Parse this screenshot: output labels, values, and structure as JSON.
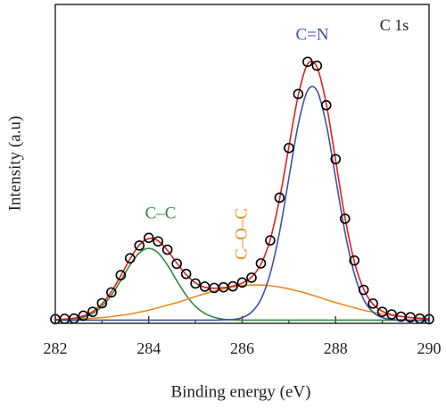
{
  "chart_data": {
    "type": "line",
    "x_label": "Binding energy (eV)",
    "y_label": "Intensity (a.u)",
    "label": "C 1s",
    "xlim": [
      282,
      290
    ],
    "xticks": [
      282,
      284,
      286,
      288,
      290
    ],
    "xminorticks": [
      283,
      285,
      287,
      289
    ],
    "ylim": [
      0,
      1
    ],
    "x": [
      282.0,
      282.2,
      282.4,
      282.6,
      282.8,
      283.0,
      283.2,
      283.4,
      283.6,
      283.8,
      284.0,
      284.2,
      284.4,
      284.6,
      284.8,
      285.0,
      285.2,
      285.4,
      285.6,
      285.8,
      286.0,
      286.2,
      286.4,
      286.6,
      286.8,
      287.0,
      287.2,
      287.4,
      287.6,
      287.8,
      288.0,
      288.2,
      288.4,
      288.6,
      288.8,
      289.0,
      289.2,
      289.4,
      289.6,
      289.8,
      290.0
    ],
    "series": [
      {
        "name": "C–C",
        "color": "#2e8b3e",
        "values": [
          0.01,
          0.011,
          0.013,
          0.019,
          0.031,
          0.053,
          0.088,
          0.134,
          0.183,
          0.221,
          0.235,
          0.221,
          0.183,
          0.134,
          0.088,
          0.053,
          0.031,
          0.019,
          0.013,
          0.011,
          0.01,
          0.01,
          0.01,
          0.01,
          0.01,
          0.01,
          0.01,
          0.01,
          0.01,
          0.01,
          0.01,
          0.01,
          0.01,
          0.01,
          0.01,
          0.01,
          0.01,
          0.01,
          0.01,
          0.01,
          0.01
        ]
      },
      {
        "name": "C–O–C",
        "color": "#f08a1e",
        "values": [
          0.011,
          0.012,
          0.013,
          0.014,
          0.016,
          0.018,
          0.021,
          0.025,
          0.029,
          0.035,
          0.041,
          0.049,
          0.057,
          0.065,
          0.074,
          0.084,
          0.093,
          0.101,
          0.108,
          0.114,
          0.118,
          0.12,
          0.12,
          0.118,
          0.114,
          0.108,
          0.101,
          0.093,
          0.084,
          0.074,
          0.065,
          0.057,
          0.049,
          0.041,
          0.035,
          0.029,
          0.025,
          0.021,
          0.018,
          0.016,
          0.014
        ]
      },
      {
        "name": "C=N",
        "color": "#3b52a8",
        "values": [
          0.01,
          0.01,
          0.01,
          0.01,
          0.01,
          0.01,
          0.01,
          0.01,
          0.01,
          0.01,
          0.01,
          0.01,
          0.01,
          0.01,
          0.01,
          0.01,
          0.01,
          0.01,
          0.011,
          0.012,
          0.018,
          0.035,
          0.075,
          0.156,
          0.286,
          0.456,
          0.624,
          0.73,
          0.73,
          0.624,
          0.456,
          0.286,
          0.156,
          0.075,
          0.035,
          0.018,
          0.012,
          0.011,
          0.01,
          0.01,
          0.01
        ]
      },
      {
        "color": "#e0201c",
        "values": [
          0.012,
          0.013,
          0.016,
          0.023,
          0.037,
          0.061,
          0.099,
          0.149,
          0.202,
          0.246,
          0.266,
          0.259,
          0.229,
          0.189,
          0.153,
          0.127,
          0.113,
          0.11,
          0.112,
          0.117,
          0.126,
          0.145,
          0.185,
          0.263,
          0.39,
          0.554,
          0.715,
          0.813,
          0.804,
          0.688,
          0.511,
          0.332,
          0.194,
          0.107,
          0.06,
          0.038,
          0.027,
          0.022,
          0.018,
          0.016,
          0.014
        ]
      },
      {
        "color": "#000000",
        "marker": "circle",
        "values": [
          0.013,
          0.014,
          0.015,
          0.024,
          0.036,
          0.063,
          0.097,
          0.151,
          0.204,
          0.244,
          0.268,
          0.257,
          0.231,
          0.187,
          0.155,
          0.125,
          0.115,
          0.111,
          0.113,
          0.116,
          0.128,
          0.143,
          0.188,
          0.26,
          0.394,
          0.55,
          0.719,
          0.82,
          0.808,
          0.684,
          0.515,
          0.328,
          0.197,
          0.105,
          0.062,
          0.036,
          0.028,
          0.021,
          0.019,
          0.015,
          0.013
        ]
      }
    ]
  }
}
